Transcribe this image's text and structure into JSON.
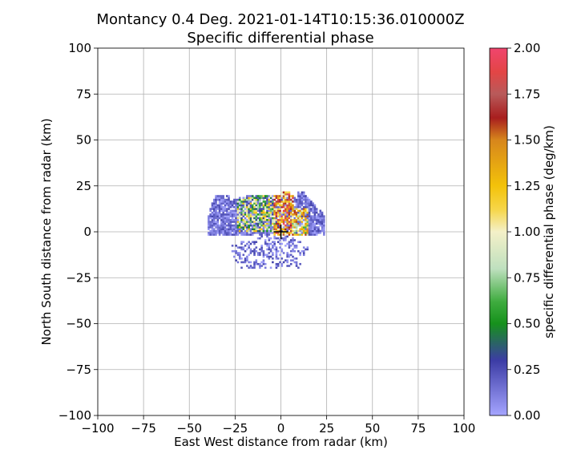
{
  "chart_data": {
    "type": "heatmap",
    "title": "Montancy 0.4 Deg. 2021-01-14T10:15:36.010000Z",
    "subtitle": "Specific differential phase",
    "xlabel": "East West distance from radar (km)",
    "ylabel": "North South distance from radar (km)",
    "xlim": [
      -100,
      100
    ],
    "ylim": [
      -100,
      100
    ],
    "xticks": [
      -100,
      -75,
      -50,
      -25,
      0,
      25,
      50,
      75,
      100
    ],
    "yticks": [
      -100,
      -75,
      -50,
      -25,
      0,
      25,
      50,
      75,
      100
    ],
    "xtick_labels": [
      "−100",
      "−75",
      "−50",
      "−25",
      "0",
      "25",
      "50",
      "75",
      "100"
    ],
    "ytick_labels": [
      "−100",
      "−75",
      "−50",
      "−25",
      "0",
      "25",
      "50",
      "75",
      "100"
    ],
    "grid": true,
    "radar_location": [
      0,
      0
    ],
    "colorbar": {
      "label": "specific differential phase (deg/km)",
      "range": [
        0,
        2
      ],
      "ticks": [
        0.0,
        0.25,
        0.5,
        0.75,
        1.0,
        1.25,
        1.5,
        1.75,
        2.0
      ],
      "tick_labels": [
        "0.00",
        "0.25",
        "0.50",
        "0.75",
        "1.00",
        "1.25",
        "1.50",
        "1.75",
        "2.00"
      ],
      "stops": [
        {
          "value": 0.0,
          "color": "#a5a5ff"
        },
        {
          "value": 0.3,
          "color": "#3c3ca5"
        },
        {
          "value": 0.5,
          "color": "#16911c"
        },
        {
          "value": 0.62,
          "color": "#3fac3f"
        },
        {
          "value": 0.8,
          "color": "#bfe0bf"
        },
        {
          "value": 1.0,
          "color": "#f4f0c8"
        },
        {
          "value": 1.12,
          "color": "#f6d64a"
        },
        {
          "value": 1.25,
          "color": "#f3c20a"
        },
        {
          "value": 1.5,
          "color": "#d7861c"
        },
        {
          "value": 1.62,
          "color": "#a81e1e"
        },
        {
          "value": 1.75,
          "color": "#b85a5a"
        },
        {
          "value": 1.87,
          "color": "#e34545"
        },
        {
          "value": 2.0,
          "color": "#f0456e"
        }
      ]
    },
    "data_extent": {
      "x": [
        -40,
        24
      ],
      "y": [
        -20,
        22
      ]
    },
    "echo_regions": [
      {
        "x": [
          -40,
          24
        ],
        "y": [
          -20,
          22
        ],
        "value_range": [
          0.0,
          0.3
        ],
        "density": 0.55
      },
      {
        "x": [
          -24,
          -4
        ],
        "y": [
          0,
          20
        ],
        "value_range": [
          0.3,
          1.3
        ],
        "density": 0.75
      },
      {
        "x": [
          -4,
          6
        ],
        "y": [
          -2,
          22
        ],
        "value_range": [
          0.9,
          2.0
        ],
        "density": 0.85
      },
      {
        "x": [
          6,
          14
        ],
        "y": [
          -2,
          12
        ],
        "value_range": [
          0.6,
          1.6
        ],
        "density": 0.8
      },
      {
        "x": [
          -40,
          -28
        ],
        "y": [
          -4,
          12
        ],
        "value_range": [
          0.0,
          0.25
        ],
        "density": 0.7
      }
    ]
  }
}
